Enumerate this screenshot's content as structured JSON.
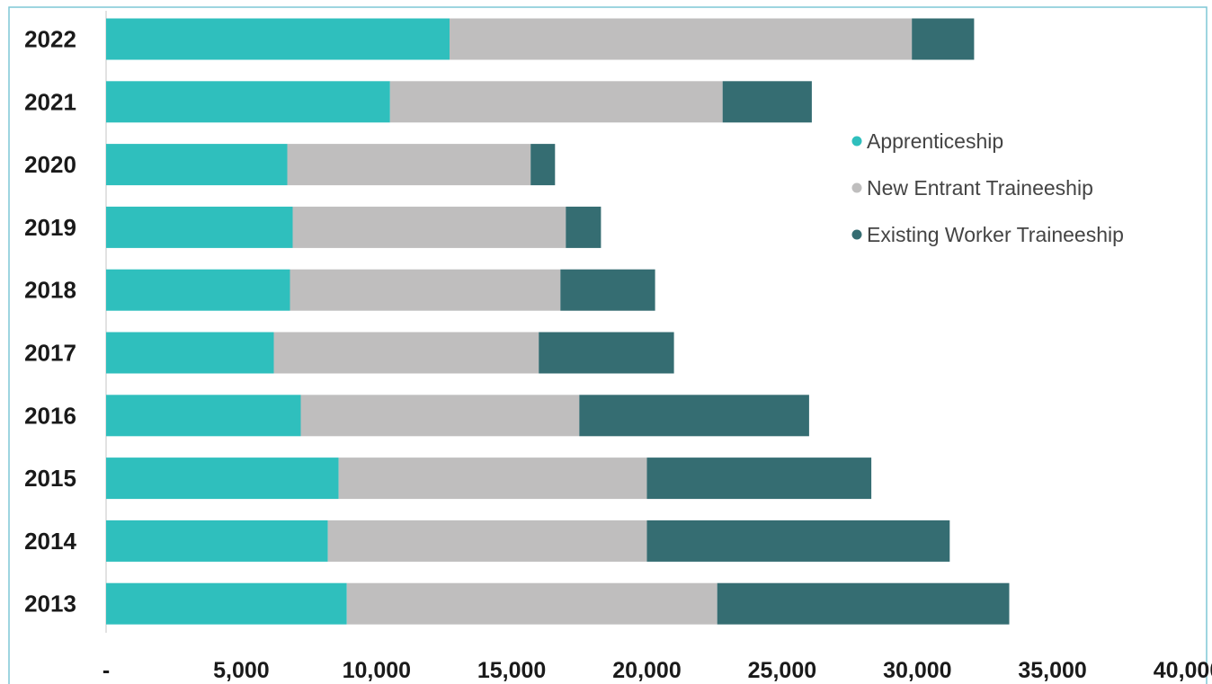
{
  "chart_data": {
    "type": "bar",
    "orientation": "horizontal",
    "stacked": true,
    "categories": [
      "2022",
      "2021",
      "2020",
      "2019",
      "2018",
      "2017",
      "2016",
      "2015",
      "2014",
      "2013"
    ],
    "series": [
      {
        "name": "Apprenticeship",
        "color": "#2fbfbd",
        "values": [
          12700,
          10500,
          6700,
          6900,
          6800,
          6200,
          7200,
          8600,
          8200,
          8900
        ]
      },
      {
        "name": "New Entrant Traineeship",
        "color": "#bfbebe",
        "values": [
          17100,
          12300,
          9000,
          10100,
          10000,
          9800,
          10300,
          11400,
          11800,
          13700
        ]
      },
      {
        "name": "Existing Worker Traineeship",
        "color": "#356d72",
        "values": [
          2300,
          3300,
          900,
          1300,
          3500,
          5000,
          8500,
          8300,
          11200,
          10800
        ]
      }
    ],
    "x_ticks": [
      "-",
      "5,000",
      "10,000",
      "15,000",
      "20,000",
      "25,000",
      "30,000",
      "35,000",
      "40,000"
    ],
    "xlim": [
      0,
      40000
    ],
    "xlabel": "",
    "ylabel": "",
    "title": "",
    "grid": false,
    "legend_position": "right"
  }
}
